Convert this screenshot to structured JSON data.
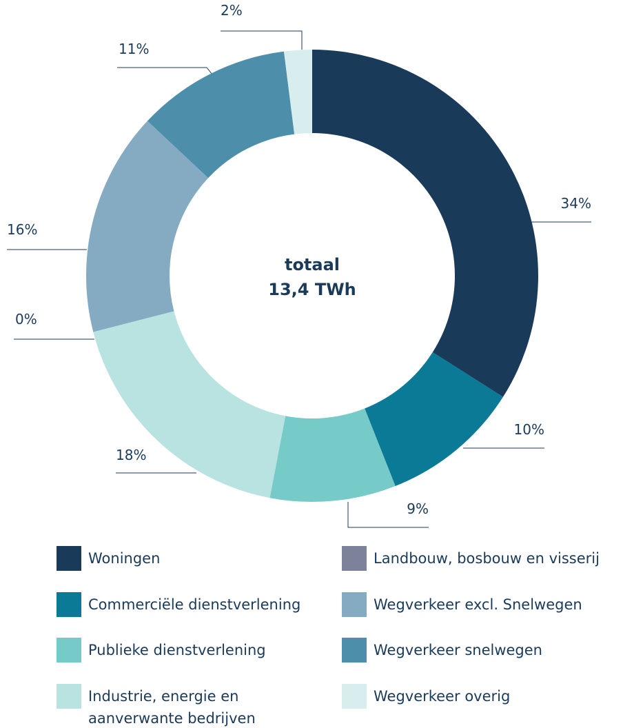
{
  "chart_data": {
    "type": "donut",
    "center_title": "totaal",
    "center_value": "13,4 TWh",
    "categories": [
      "Woningen",
      "Commerciële dienstverlening",
      "Publieke dienstverlening",
      "Industrie, energie en aanverwante bedrijven",
      "Landbouw, bosbouw en visserij",
      "Wegverkeer excl. Snelwegen",
      "Wegverkeer snelwegen",
      "Wegverkeer overig"
    ],
    "values": [
      34,
      10,
      9,
      18,
      0,
      16,
      11,
      2
    ],
    "value_labels": [
      "34%",
      "10%",
      "9%",
      "18%",
      "0%",
      "16%",
      "11%",
      "2%"
    ],
    "colors": [
      "#1a3a5a",
      "#0a7a96",
      "#76cbc8",
      "#b9e3e0",
      "#7b8299",
      "#85abc2",
      "#4d8fab",
      "#d8eeee"
    ],
    "legend": "bottom"
  }
}
